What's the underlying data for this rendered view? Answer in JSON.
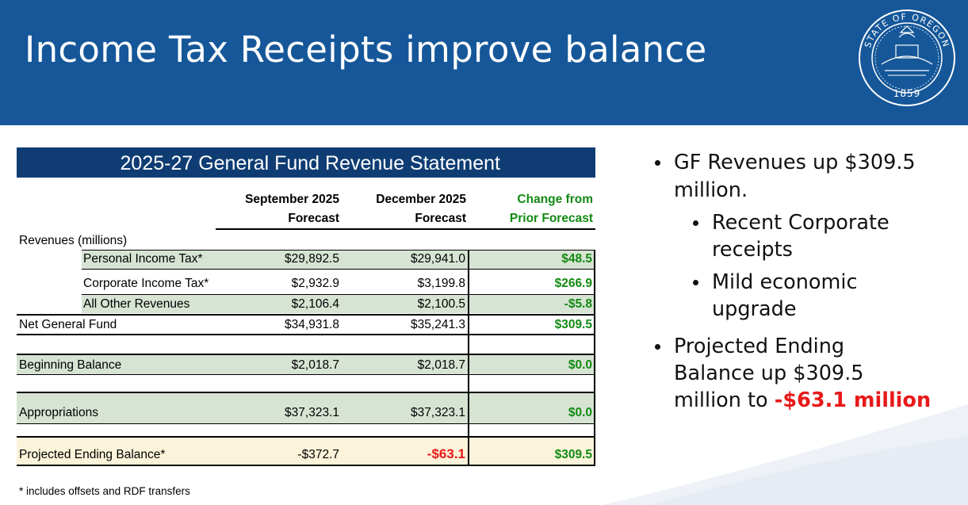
{
  "slide": {
    "title": "Income Tax Receipts improve balance",
    "seal": {
      "text_top": "STATE OF OREGON",
      "year": "1859"
    }
  },
  "table": {
    "title": "2025-27 General Fund Revenue Statement",
    "headers": {
      "col1_line1": "September 2025",
      "col1_line2": "Forecast",
      "col2_line1": "December 2025",
      "col2_line2": "Forecast",
      "col3_line1": "Change from",
      "col3_line2": "Prior Forecast"
    },
    "section_label": "Revenues (millions)",
    "rows": [
      {
        "label": "Personal Income Tax*",
        "sep": "$29,892.5",
        "dec": "$29,941.0",
        "change": "$48.5"
      },
      {
        "label": "Corporate Income Tax*",
        "sep": "$2,932.9",
        "dec": "$3,199.8",
        "change": "$266.9"
      },
      {
        "label": "All Other Revenues",
        "sep": "$2,106.4",
        "dec": "$2,100.5",
        "change": "-$5.8"
      },
      {
        "label": "Net General Fund",
        "sep": "$34,931.8",
        "dec": "$35,241.3",
        "change": "$309.5"
      },
      {
        "label": "Beginning Balance",
        "sep": "$2,018.7",
        "dec": "$2,018.7",
        "change": "$0.0"
      },
      {
        "label": "Appropriations",
        "sep": "$37,323.1",
        "dec": "$37,323.1",
        "change": "$0.0"
      },
      {
        "label": "Projected Ending Balance*",
        "sep": "-$372.7",
        "dec": "-$63.1",
        "change": "$309.5"
      }
    ],
    "footnote": "* includes offsets and RDF transfers"
  },
  "bullets": {
    "b1_line1": "GF Revenues up $309.5",
    "b1_line2": "million.",
    "s1_line1": "Recent Corporate",
    "s1_line2": "receipts",
    "s2_line1": "Mild economic",
    "s2_line2": "upgrade",
    "b2_line1": "Projected Ending",
    "b2_line2": "Balance up $309.5",
    "b2_line3_prefix": "million to ",
    "b2_line3_highlight": "-$63.1 million"
  },
  "colors": {
    "header_blue": "#155799",
    "table_title_blue": "#0f3d73",
    "row_green": "#d7e4d4",
    "row_cream": "#fbf3da",
    "positive_green": "#128a12",
    "highlight_red": "#e8191a"
  }
}
